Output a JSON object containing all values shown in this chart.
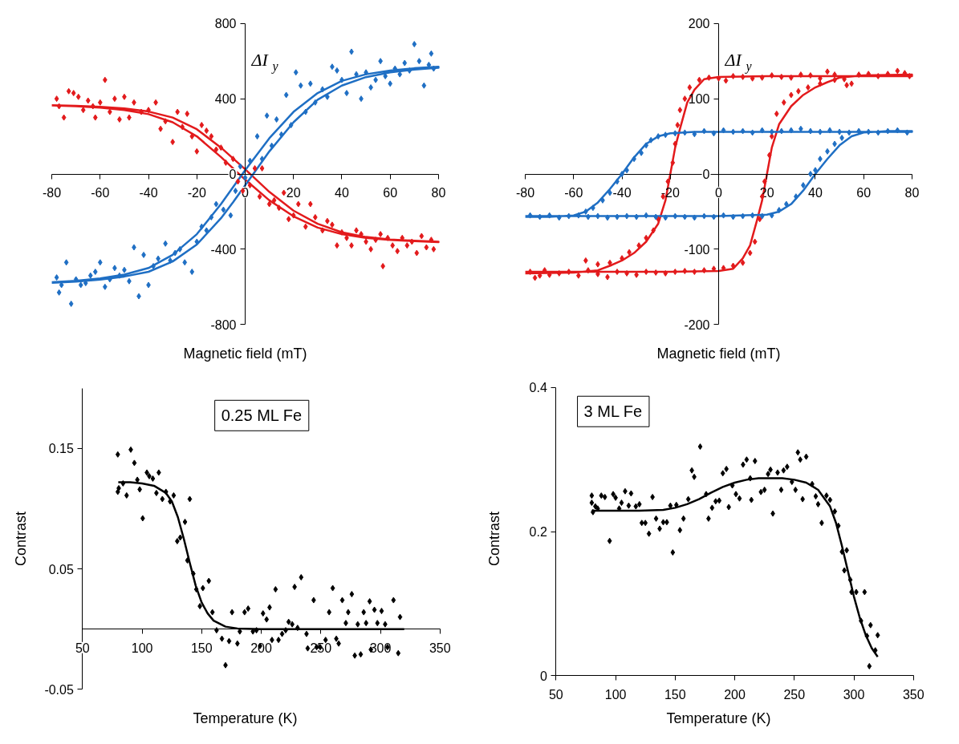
{
  "chart_data": [
    {
      "type": "scatter",
      "xlabel": "Magnetic field (mT)",
      "ylabel": "ΔI$_{y}$",
      "xlim": [
        -80,
        80
      ],
      "ylim": [
        -800,
        800
      ],
      "xticks": [
        -80,
        -60,
        -40,
        -20,
        0,
        20,
        40,
        60,
        80
      ],
      "yticks": [
        -800,
        -400,
        0,
        400,
        800
      ],
      "marker": "diamond",
      "line_style": "solid",
      "series": [
        {
          "color": "#e31a1c",
          "x": [
            -78,
            -77,
            -75,
            -73,
            -71,
            -69,
            -67,
            -65,
            -63,
            -62,
            -60,
            -58,
            -56,
            -54,
            -52,
            -50,
            -48,
            -46,
            -43,
            -40,
            -37,
            -35,
            -33,
            -30,
            -28,
            -26,
            -24,
            -22,
            -20,
            -18,
            -16,
            -14,
            -12,
            -10,
            -8,
            -5,
            -3,
            -1,
            2,
            4,
            6,
            7,
            10,
            12,
            14,
            16,
            18,
            20,
            22,
            25,
            27,
            29,
            32,
            34,
            36,
            38,
            40,
            42,
            44,
            46,
            48,
            50,
            52,
            54,
            56,
            57,
            59,
            61,
            63,
            65,
            67,
            69,
            71,
            73,
            75,
            77,
            78
          ],
          "values": [
            400,
            360,
            300,
            440,
            430,
            410,
            340,
            390,
            360,
            300,
            380,
            500,
            330,
            400,
            290,
            410,
            300,
            380,
            330,
            340,
            380,
            240,
            280,
            170,
            330,
            250,
            320,
            200,
            120,
            260,
            230,
            200,
            130,
            140,
            60,
            80,
            -40,
            -90,
            -60,
            30,
            -120,
            30,
            -160,
            -140,
            -180,
            -100,
            -240,
            -220,
            -160,
            -280,
            -160,
            -230,
            -300,
            -250,
            -270,
            -380,
            -310,
            -340,
            -380,
            -300,
            -320,
            -360,
            -400,
            -350,
            -320,
            -490,
            -340,
            -380,
            -410,
            -340,
            -380,
            -360,
            -420,
            -330,
            -390,
            -350,
            -400
          ]
        },
        {
          "color": "#1f6fc4",
          "x": [
            -78,
            -77,
            -76,
            -74,
            -72,
            -70,
            -68,
            -66,
            -64,
            -62,
            -60,
            -58,
            -56,
            -54,
            -52,
            -50,
            -48,
            -46,
            -44,
            -42,
            -40,
            -38,
            -36,
            -33,
            -31,
            -29,
            -27,
            -25,
            -22,
            -20,
            -18,
            -16,
            -14,
            -12,
            -9,
            -6,
            -4,
            -2,
            0,
            2,
            5,
            7,
            9,
            11,
            13,
            15,
            17,
            19,
            21,
            23,
            25,
            27,
            29,
            32,
            34,
            36,
            38,
            40,
            42,
            44,
            46,
            48,
            50,
            52,
            54,
            56,
            58,
            60,
            62,
            64,
            66,
            68,
            70,
            72,
            74,
            76,
            77,
            78
          ],
          "values": [
            -550,
            -630,
            -590,
            -470,
            -690,
            -560,
            -590,
            -580,
            -540,
            -520,
            -470,
            -600,
            -560,
            -500,
            -540,
            -510,
            -570,
            -390,
            -650,
            -430,
            -590,
            -490,
            -450,
            -370,
            -460,
            -420,
            -400,
            -470,
            -520,
            -360,
            -280,
            -300,
            -230,
            -160,
            -190,
            -220,
            -90,
            40,
            -20,
            70,
            200,
            80,
            310,
            150,
            290,
            210,
            420,
            260,
            540,
            470,
            330,
            480,
            380,
            450,
            410,
            570,
            550,
            500,
            430,
            650,
            530,
            400,
            540,
            460,
            500,
            600,
            520,
            480,
            560,
            530,
            590,
            550,
            690,
            600,
            470,
            580,
            640,
            560
          ]
        },
        {
          "type": "line",
          "marker": "none",
          "color": "#e31a1c",
          "x": [
            -80,
            -70,
            -60,
            -50,
            -40,
            -30,
            -20,
            -10,
            0,
            10,
            20,
            30,
            40,
            50,
            60,
            70,
            80,
            80,
            70,
            60,
            50,
            40,
            30,
            20,
            10,
            0,
            -10,
            -20,
            -30,
            -40,
            -50,
            -60,
            -70,
            -80
          ],
          "values": [
            365,
            362,
            357,
            348,
            332,
            300,
            238,
            140,
            25,
            -95,
            -195,
            -265,
            -310,
            -335,
            -348,
            -355,
            -360,
            -362,
            -357,
            -350,
            -340,
            -320,
            -285,
            -225,
            -140,
            -30,
            90,
            200,
            275,
            318,
            340,
            353,
            360,
            364
          ]
        },
        {
          "type": "line",
          "marker": "none",
          "color": "#1f6fc4",
          "x": [
            -80,
            -70,
            -60,
            -50,
            -40,
            -30,
            -20,
            -10,
            0,
            10,
            20,
            30,
            40,
            50,
            60,
            70,
            80,
            80,
            70,
            60,
            50,
            40,
            30,
            20,
            10,
            5,
            -5,
            -10,
            -20,
            -30,
            -40,
            -50,
            -60,
            -70,
            -80
          ],
          "values": [
            -575,
            -568,
            -555,
            -535,
            -500,
            -430,
            -320,
            -160,
            20,
            190,
            330,
            430,
            495,
            530,
            550,
            562,
            570,
            565,
            555,
            540,
            515,
            470,
            395,
            275,
            120,
            30,
            -150,
            -235,
            -375,
            -465,
            -520,
            -545,
            -562,
            -572,
            -578
          ]
        }
      ]
    },
    {
      "type": "scatter",
      "xlabel": "Magnetic field (mT)",
      "ylabel": "ΔI$_{y}$",
      "xlim": [
        -80,
        80
      ],
      "ylim": [
        -200,
        200
      ],
      "xticks": [
        -80,
        -60,
        -40,
        -20,
        0,
        20,
        40,
        60,
        80
      ],
      "yticks": [
        -200,
        -100,
        0,
        100,
        200
      ],
      "marker": "diamond",
      "line_style": "solid",
      "series": [
        {
          "color": "#e31a1c",
          "x": [
            -8,
            -4,
            0,
            3,
            6,
            10,
            14,
            18,
            22,
            26,
            30,
            34,
            38,
            42,
            45,
            48,
            52,
            55,
            58,
            62,
            66,
            70,
            74,
            77,
            79,
            10,
            13,
            15,
            17,
            18,
            19,
            21,
            22,
            24,
            27,
            30,
            33,
            37,
            42,
            48,
            53,
            -78,
            -76,
            -74,
            -72,
            -70,
            -66,
            -62,
            -58,
            -54,
            -50,
            -46,
            -42,
            -38,
            -34,
            -30,
            -26,
            -22,
            -18,
            -14,
            -10,
            -6,
            -2,
            2,
            6,
            -55,
            -50,
            -45,
            -40,
            -37,
            -33,
            -30,
            -27,
            -25,
            -23,
            -21,
            -19,
            -18,
            -17,
            -16,
            -14,
            -12
          ],
          "values": [
            125,
            128,
            127,
            124,
            130,
            129,
            127,
            128,
            131,
            129,
            128,
            132,
            131,
            127,
            136,
            132,
            126,
            120,
            132,
            133,
            130,
            133,
            137,
            134,
            130,
            -118,
            -105,
            -90,
            -60,
            -30,
            -10,
            25,
            50,
            80,
            95,
            105,
            110,
            115,
            120,
            125,
            118,
            -130,
            -138,
            -135,
            -128,
            -134,
            -132,
            -130,
            -135,
            -128,
            -133,
            -137,
            -130,
            -132,
            -134,
            -130,
            -131,
            -132,
            -130,
            -129,
            -130,
            -128,
            -126,
            -125,
            -122,
            -115,
            -120,
            -118,
            -112,
            -104,
            -95,
            -85,
            -75,
            -60,
            -30,
            -10,
            15,
            40,
            65,
            85,
            100,
            115
          ]
        },
        {
          "color": "#1f6fc4",
          "x": [
            -25,
            -22,
            -18,
            -14,
            -10,
            -6,
            -2,
            2,
            6,
            10,
            14,
            18,
            22,
            26,
            30,
            34,
            38,
            42,
            46,
            50,
            54,
            58,
            62,
            66,
            70,
            74,
            78,
            -78,
            -74,
            -70,
            -66,
            -62,
            -58,
            -54,
            -50,
            -46,
            -42,
            -38,
            -34,
            -30,
            -26,
            -22,
            -18,
            -14,
            -10,
            -6,
            -2,
            2,
            6,
            10,
            14,
            18,
            22,
            -55,
            -52,
            -48,
            -45,
            -42,
            -40,
            -38,
            -35,
            -32,
            -30,
            -28,
            25,
            28,
            32,
            35,
            38,
            40,
            42,
            45,
            48,
            51
          ],
          "values": [
            50,
            52,
            54,
            55,
            53,
            57,
            54,
            58,
            56,
            57,
            55,
            58,
            56,
            57,
            58,
            60,
            57,
            56,
            58,
            56,
            55,
            57,
            56,
            55,
            57,
            58,
            55,
            -55,
            -57,
            -55,
            -58,
            -56,
            -55,
            -57,
            -56,
            -58,
            -57,
            -56,
            -57,
            -55,
            -57,
            -58,
            -56,
            -57,
            -58,
            -56,
            -57,
            -55,
            -57,
            -56,
            -55,
            -56,
            -55,
            -50,
            -45,
            -35,
            -25,
            -10,
            0,
            5,
            20,
            28,
            38,
            45,
            -48,
            -40,
            -30,
            -15,
            0,
            5,
            20,
            30,
            40,
            48
          ]
        },
        {
          "type": "line",
          "marker": "none",
          "color": "#e31a1c",
          "x": [
            -80,
            -60,
            -50,
            -45,
            -40,
            -35,
            -30,
            -25,
            -22,
            -20,
            -18,
            -16,
            -13,
            -10,
            -6,
            0,
            20,
            40,
            60,
            80,
            80,
            60,
            50,
            45,
            40,
            35,
            30,
            25,
            22,
            20,
            18,
            16,
            13,
            10,
            6,
            0,
            -20,
            -40,
            -60,
            -80
          ],
          "values": [
            -132,
            -131,
            -128,
            -122,
            -115,
            -105,
            -90,
            -66,
            -35,
            0,
            35,
            60,
            95,
            112,
            126,
            129,
            130,
            130,
            130,
            130,
            132,
            131,
            128,
            122,
            115,
            105,
            90,
            66,
            35,
            0,
            -35,
            -60,
            -95,
            -112,
            -126,
            -129,
            -130,
            -130,
            -130,
            -130
          ]
        },
        {
          "type": "line",
          "marker": "none",
          "color": "#1f6fc4",
          "x": [
            -80,
            -70,
            -60,
            -55,
            -50,
            -45,
            -40,
            -35,
            -30,
            -25,
            -20,
            -10,
            0,
            20,
            40,
            60,
            80,
            80,
            70,
            60,
            55,
            50,
            45,
            40,
            35,
            30,
            25,
            20,
            0,
            -20,
            -40,
            -60,
            -80
          ],
          "values": [
            -57,
            -57,
            -55,
            -50,
            -38,
            -20,
            0,
            22,
            40,
            50,
            54,
            56,
            56,
            56,
            56,
            56,
            56,
            57,
            57,
            55,
            50,
            38,
            20,
            0,
            -22,
            -40,
            -50,
            -54,
            -56,
            -56,
            -56,
            -56,
            -56
          ]
        }
      ]
    },
    {
      "type": "scatter",
      "xlabel": "Temperature (K)",
      "ylabel": "Contrast",
      "annotations": [
        "0.25 ML Fe"
      ],
      "xlim": [
        50,
        350
      ],
      "ylim": [
        -0.05,
        0.2
      ],
      "xticks": [
        50,
        100,
        150,
        200,
        250,
        300,
        350
      ],
      "yticks": [
        -0.05,
        0.05,
        0.15
      ],
      "marker": "diamond",
      "line_style": "solid",
      "series": [
        {
          "color": "#000000",
          "x": [
            79.6,
            79.6,
            80.4,
            84,
            87,
            90.5,
            93.5,
            96,
            98,
            100.5,
            104,
            106,
            109,
            112,
            114,
            117,
            120,
            123.5,
            126.5,
            129.5,
            132,
            136,
            140,
            138,
            143,
            145.5,
            148.5,
            151,
            156,
            159,
            162.5,
            167,
            170,
            173,
            175.5,
            180,
            182,
            186,
            189,
            193,
            196,
            199,
            201.5,
            204.5,
            207,
            209,
            212,
            214.5,
            217.5,
            220.5,
            223,
            226,
            228,
            230.5,
            233.5,
            238,
            239,
            244,
            246.5,
            249.5,
            254,
            257,
            260,
            263,
            265,
            268,
            271,
            273,
            276,
            278.5,
            281,
            283.5,
            286,
            288,
            291,
            292,
            295,
            297.5,
            301,
            304,
            306,
            311,
            315,
            316.5
          ],
          "values": [
            0.145,
            0.114,
            0.117,
            0.121,
            0.111,
            0.149,
            0.138,
            0.124,
            0.116,
            0.092,
            0.13,
            0.127,
            0.125,
            0.113,
            0.13,
            0.108,
            0.114,
            0.106,
            0.111,
            0.073,
            0.076,
            0.089,
            0.108,
            0.057,
            0.046,
            0.033,
            0.019,
            0.034,
            0.04,
            0.014,
            -0.001,
            -0.008,
            -0.03,
            -0.01,
            0.014,
            -0.012,
            -0.002,
            0.014,
            0.017,
            -0.002,
            -0.001,
            -0.014,
            0.013,
            0.008,
            0.018,
            -0.009,
            0.033,
            -0.009,
            -0.004,
            -0.001,
            0.006,
            0.004,
            0.035,
            0.001,
            0.043,
            -0.004,
            -0.016,
            0.024,
            -0.015,
            -0.015,
            -0.009,
            0.014,
            0.034,
            -0.008,
            -0.012,
            0.024,
            0.005,
            0.014,
            0.029,
            -0.022,
            0.004,
            -0.021,
            0.014,
            0.005,
            0.023,
            -0.017,
            0.016,
            0.005,
            0.015,
            0.004,
            -0.015,
            0.024,
            -0.02,
            0.01
          ]
        },
        {
          "type": "line",
          "marker": "none",
          "color": "#000000",
          "x": [
            80,
            90,
            100,
            110,
            120,
            125,
            130,
            135,
            140,
            145,
            150,
            155,
            160,
            170,
            180,
            200,
            250,
            320
          ],
          "values": [
            0.122,
            0.122,
            0.121,
            0.119,
            0.113,
            0.106,
            0.093,
            0.075,
            0.055,
            0.036,
            0.022,
            0.013,
            0.007,
            0.002,
            0.0005,
            0,
            0,
            0
          ]
        }
      ]
    },
    {
      "type": "scatter",
      "xlabel": "Temperature (K)",
      "ylabel": "Contrast",
      "annotations": [
        "3 ML Fe"
      ],
      "xlim": [
        50,
        350
      ],
      "ylim": [
        0,
        0.4
      ],
      "xticks": [
        50,
        100,
        150,
        200,
        250,
        300,
        350
      ],
      "yticks": [
        0,
        0.2,
        0.4
      ],
      "marker": "diamond",
      "line_style": "solid",
      "series": [
        {
          "color": "#000000",
          "x": [
            80,
            80,
            81,
            83,
            85,
            88,
            91,
            95,
            98,
            100,
            103,
            105,
            108,
            111,
            113,
            117,
            120,
            122,
            125,
            128,
            131,
            134,
            137,
            140,
            143,
            146,
            148,
            151,
            154,
            157,
            161,
            164,
            166,
            171,
            176,
            178,
            181,
            184,
            187,
            190,
            193,
            195,
            198,
            201,
            204,
            207,
            210,
            213,
            214,
            217,
            222,
            225,
            228,
            230,
            232,
            236,
            239,
            241,
            244,
            248,
            251,
            253,
            255,
            257,
            260,
            265,
            268,
            270,
            273,
            277,
            280,
            284,
            287,
            290,
            292,
            294,
            297,
            298,
            302,
            306,
            309,
            311,
            313,
            314,
            318,
            320
          ],
          "values": [
            0.25,
            0.24,
            0.227,
            0.235,
            0.232,
            0.25,
            0.248,
            0.187,
            0.252,
            0.247,
            0.232,
            0.24,
            0.256,
            0.236,
            0.253,
            0.235,
            0.238,
            0.212,
            0.212,
            0.197,
            0.248,
            0.218,
            0.204,
            0.213,
            0.213,
            0.236,
            0.171,
            0.237,
            0.202,
            0.218,
            0.245,
            0.285,
            0.276,
            0.318,
            0.252,
            0.218,
            0.233,
            0.242,
            0.243,
            0.281,
            0.287,
            0.234,
            0.264,
            0.252,
            0.246,
            0.293,
            0.3,
            0.274,
            0.244,
            0.298,
            0.255,
            0.258,
            0.28,
            0.286,
            0.225,
            0.282,
            0.258,
            0.285,
            0.29,
            0.269,
            0.258,
            0.31,
            0.3,
            0.245,
            0.304,
            0.266,
            0.249,
            0.238,
            0.212,
            0.25,
            0.244,
            0.228,
            0.208,
            0.172,
            0.146,
            0.174,
            0.133,
            0.116,
            0.116,
            0.076,
            0.116,
            0.055,
            0.013,
            0.07,
            0.035,
            0.056
          ]
        },
        {
          "type": "line",
          "marker": "none",
          "color": "#000000",
          "x": [
            80,
            100,
            120,
            140,
            150,
            160,
            170,
            180,
            190,
            200,
            210,
            220,
            240,
            250,
            260,
            270,
            280,
            285,
            290,
            295,
            300,
            305,
            310,
            315,
            320
          ],
          "values": [
            0.229,
            0.229,
            0.229,
            0.23,
            0.233,
            0.238,
            0.245,
            0.254,
            0.262,
            0.268,
            0.272,
            0.274,
            0.274,
            0.272,
            0.268,
            0.258,
            0.235,
            0.212,
            0.18,
            0.145,
            0.11,
            0.08,
            0.056,
            0.038,
            0.026
          ]
        }
      ]
    }
  ]
}
